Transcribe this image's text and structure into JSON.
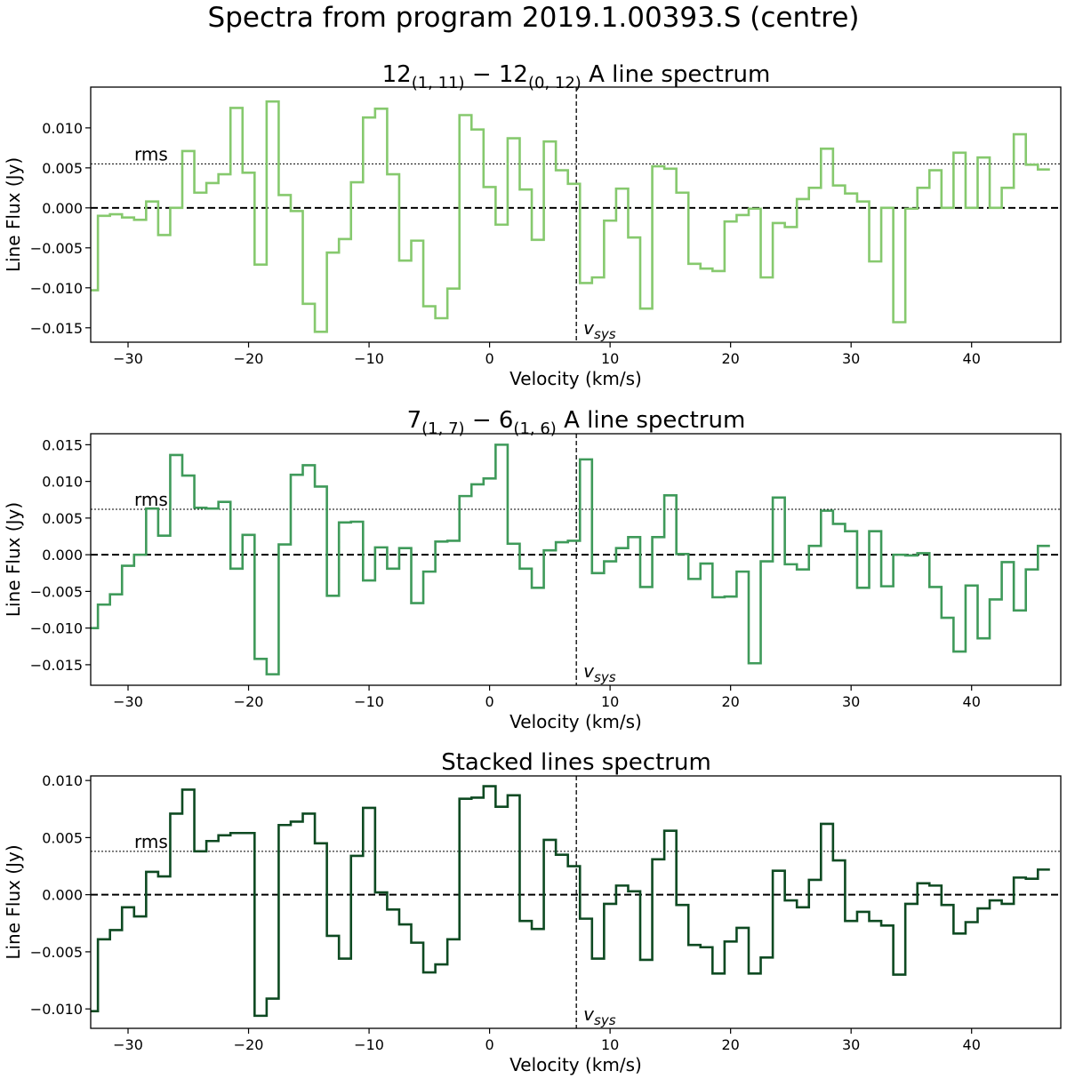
{
  "suptitle": "Spectra from program 2019.1.00393.S (centre)",
  "chart_data": [
    {
      "type": "step",
      "title": [
        {
          "text": "12"
        },
        {
          "text": "(1, 11)",
          "sub": true
        },
        {
          "text": " − 12"
        },
        {
          "text": "(0, 12)",
          "sub": true
        },
        {
          "text": " A line spectrum"
        }
      ],
      "xlabel": "Velocity (km/s)",
      "ylabel": "Line Flux (Jy)",
      "color": "#86c96e",
      "x": [
        -33,
        -32,
        -31,
        -30,
        -29,
        -28,
        -27,
        -26,
        -25,
        -24,
        -23,
        -22,
        -21,
        -20,
        -19,
        -18,
        -17,
        -16,
        -15,
        -14,
        -13,
        -12,
        -11,
        -10,
        -9,
        -8,
        -7,
        -6,
        -5,
        -4,
        -3,
        -2,
        -1,
        0,
        1,
        2,
        3,
        4,
        5,
        6,
        7,
        8,
        9,
        10,
        11,
        12,
        13,
        14,
        15,
        16,
        17,
        18,
        19,
        20,
        21,
        22,
        23,
        24,
        25,
        26,
        27,
        28,
        29,
        30,
        31,
        32,
        33,
        34,
        35,
        36,
        37,
        38,
        39,
        40,
        41,
        42,
        43,
        44,
        45,
        46
      ],
      "values": [
        -0.0103,
        -0.001,
        -0.0008,
        -0.0012,
        -0.0015,
        0.0008,
        -0.0034,
        0,
        0.0071,
        0.0019,
        0.0031,
        0.0042,
        0.0125,
        0.0044,
        -0.0071,
        0.0133,
        0.0016,
        -0.0004,
        -0.012,
        -0.0155,
        -0.0056,
        -0.0039,
        0.0032,
        0.0113,
        0.0124,
        0.0042,
        -0.0066,
        -0.0041,
        -0.0123,
        -0.0138,
        -0.0101,
        0.0116,
        0.0098,
        0.0026,
        -0.0021,
        0.0087,
        0.0023,
        -0.004,
        0.0083,
        0.0047,
        0.003,
        -0.0094,
        -0.0087,
        -0.0016,
        0.0024,
        -0.0037,
        -0.0126,
        0.0052,
        0.0049,
        0.0019,
        -0.007,
        -0.0076,
        -0.0079,
        -0.0017,
        -0.0009,
        -0.0001,
        -0.0087,
        -0.0019,
        -0.0024,
        0.0011,
        0.0025,
        0.0074,
        0.0028,
        0.0018,
        0.0008,
        -0.0067,
        0,
        -0.0143,
        -0.0001,
        0.0025,
        0.0047,
        0,
        0.0069,
        0,
        0.0063,
        0,
        0.0025,
        0.0092,
        0.0054,
        0.0048
      ],
      "xlim": [
        -33.1,
        47.4
      ],
      "xticks": [
        {
          "value": -30,
          "label": "−30"
        },
        {
          "value": -20,
          "label": "−20"
        },
        {
          "value": -10,
          "label": "−10"
        },
        0,
        10,
        20,
        30,
        40
      ],
      "ylim": [
        -0.0168,
        0.0151
      ],
      "yticks": [
        {
          "value": 0.01,
          "label": "0.010"
        },
        {
          "value": 0.005,
          "label": "0.005"
        },
        {
          "value": 0,
          "label": "0.000"
        },
        {
          "value": -0.005,
          "label": "−0.005"
        },
        {
          "value": -0.01,
          "label": "−0.010"
        },
        {
          "value": -0.015,
          "label": "−0.015"
        }
      ],
      "rms": 0.0055,
      "rms_label": "rms",
      "vsys": 7.2,
      "vsys_label": [
        "v",
        "sys"
      ]
    },
    {
      "type": "step",
      "title": [
        {
          "text": "7"
        },
        {
          "text": "(1, 7)",
          "sub": true
        },
        {
          "text": " − 6"
        },
        {
          "text": "(1, 6)",
          "sub": true
        },
        {
          "text": " A line spectrum"
        }
      ],
      "xlabel": "Velocity (km/s)",
      "ylabel": "Line Flux (Jy)",
      "color": "#3f9a5a",
      "x": [
        -33,
        -32,
        -31,
        -30,
        -29,
        -28,
        -27,
        -26,
        -25,
        -24,
        -23,
        -22,
        -21,
        -20,
        -19,
        -18,
        -17,
        -16,
        -15,
        -14,
        -13,
        -12,
        -11,
        -10,
        -9,
        -8,
        -7,
        -6,
        -5,
        -4,
        -3,
        -2,
        -1,
        0,
        1,
        2,
        3,
        4,
        5,
        6,
        7,
        8,
        9,
        10,
        11,
        12,
        13,
        14,
        15,
        16,
        17,
        18,
        19,
        20,
        21,
        22,
        23,
        24,
        25,
        26,
        27,
        28,
        29,
        30,
        31,
        32,
        33,
        34,
        35,
        36,
        37,
        38,
        39,
        40,
        41,
        42,
        43,
        44,
        45,
        46
      ],
      "values": [
        -0.01,
        -0.0068,
        -0.0054,
        -0.0015,
        0,
        0.0063,
        0.0026,
        0.0136,
        0.0108,
        0.0064,
        0.0063,
        0.0072,
        -0.0019,
        0.0027,
        -0.0142,
        -0.0163,
        0.0014,
        0.0109,
        0.0122,
        0.0093,
        -0.0056,
        0.0044,
        0.0045,
        -0.0035,
        0.001,
        -0.0019,
        0.0009,
        -0.0066,
        -0.0023,
        0.0018,
        0.0019,
        0.008,
        0.0096,
        0.0104,
        0.015,
        0.0015,
        -0.0019,
        -0.0045,
        0.0006,
        0.0017,
        0.0019,
        0.013,
        -0.0025,
        -0.0009,
        0.0009,
        0.0024,
        -0.0044,
        0.0024,
        0.0081,
        0.0001,
        -0.0033,
        -0.0012,
        -0.0058,
        -0.0057,
        -0.0023,
        -0.0148,
        -0.0009,
        0.0078,
        -0.0013,
        -0.002,
        0.0012,
        0.006,
        0.0042,
        0.0032,
        -0.0045,
        0.0032,
        -0.0043,
        0,
        -0.0001,
        0.0002,
        -0.0044,
        -0.0086,
        -0.0132,
        -0.0042,
        -0.0114,
        -0.0061,
        -0.001,
        -0.0076,
        -0.002,
        0.0012
      ],
      "xlim": [
        -33.1,
        47.4
      ],
      "xticks": [
        {
          "value": -30,
          "label": "−30"
        },
        {
          "value": -20,
          "label": "−20"
        },
        {
          "value": -10,
          "label": "−10"
        },
        0,
        10,
        20,
        30,
        40
      ],
      "ylim": [
        -0.0178,
        0.0165
      ],
      "yticks": [
        {
          "value": 0.015,
          "label": "0.015"
        },
        {
          "value": 0.01,
          "label": "0.010"
        },
        {
          "value": 0.005,
          "label": "0.005"
        },
        {
          "value": 0,
          "label": "0.000"
        },
        {
          "value": -0.005,
          "label": "−0.005"
        },
        {
          "value": -0.01,
          "label": "−0.010"
        },
        {
          "value": -0.015,
          "label": "−0.015"
        }
      ],
      "rms": 0.0062,
      "rms_label": "rms",
      "vsys": 7.2,
      "vsys_label": [
        "v",
        "sys"
      ]
    },
    {
      "type": "step",
      "title": [
        {
          "text": "Stacked lines spectrum"
        }
      ],
      "xlabel": "Velocity (km/s)",
      "ylabel": "Line Flux (Jy)",
      "color": "#0e4a22",
      "x": [
        -33,
        -32,
        -31,
        -30,
        -29,
        -28,
        -27,
        -26,
        -25,
        -24,
        -23,
        -22,
        -21,
        -20,
        -19,
        -18,
        -17,
        -16,
        -15,
        -14,
        -13,
        -12,
        -11,
        -10,
        -9,
        -8,
        -7,
        -6,
        -5,
        -4,
        -3,
        -2,
        -1,
        0,
        1,
        2,
        3,
        4,
        5,
        6,
        7,
        8,
        9,
        10,
        11,
        12,
        13,
        14,
        15,
        16,
        17,
        18,
        19,
        20,
        21,
        22,
        23,
        24,
        25,
        26,
        27,
        28,
        29,
        30,
        31,
        32,
        33,
        34,
        35,
        36,
        37,
        38,
        39,
        40,
        41,
        42,
        43,
        44,
        45,
        46
      ],
      "values": [
        -0.0102,
        -0.0039,
        -0.0031,
        -0.0011,
        -0.0019,
        0.002,
        0.0016,
        0.0071,
        0.0092,
        0.0038,
        0.0047,
        0.0052,
        0.0054,
        0.0054,
        -0.0106,
        -0.0091,
        0.0061,
        0.0064,
        0.0071,
        0.0045,
        -0.0036,
        -0.0056,
        0.0034,
        0.0076,
        0.0002,
        -0.0013,
        -0.0026,
        -0.0042,
        -0.0068,
        -0.0061,
        -0.0039,
        0.0084,
        0.0085,
        0.0095,
        0.0077,
        0.0087,
        -0.0023,
        -0.003,
        0.0048,
        0.0035,
        0.0025,
        -0.0021,
        -0.0056,
        -0.0008,
        0.0008,
        0.0003,
        -0.0057,
        0.0031,
        0.0056,
        -0.0009,
        -0.0044,
        -0.0046,
        -0.0069,
        -0.0041,
        -0.0029,
        -0.0069,
        -0.0055,
        0.0021,
        -0.0005,
        -0.0011,
        0.0013,
        0.0062,
        0.003,
        -0.0023,
        -0.0015,
        -0.0023,
        -0.0027,
        -0.007,
        -0.0008,
        0.001,
        0.0008,
        -0.0009,
        -0.0034,
        -0.0024,
        -0.0012,
        -0.0005,
        -0.0008,
        0.0015,
        0.0014,
        0.0022
      ],
      "xlim": [
        -33.1,
        47.4
      ],
      "xticks": [
        {
          "value": -30,
          "label": "−30"
        },
        {
          "value": -20,
          "label": "−20"
        },
        {
          "value": -10,
          "label": "−10"
        },
        0,
        10,
        20,
        30,
        40
      ],
      "ylim": [
        -0.0117,
        0.0104
      ],
      "yticks": [
        {
          "value": 0.01,
          "label": "0.010"
        },
        {
          "value": 0.005,
          "label": "0.005"
        },
        {
          "value": 0,
          "label": "0.000"
        },
        {
          "value": -0.005,
          "label": "−0.005"
        },
        {
          "value": -0.01,
          "label": "−0.010"
        }
      ],
      "rms": 0.0038,
      "rms_label": "rms",
      "vsys": 7.2,
      "vsys_label": [
        "v",
        "sys"
      ]
    }
  ]
}
